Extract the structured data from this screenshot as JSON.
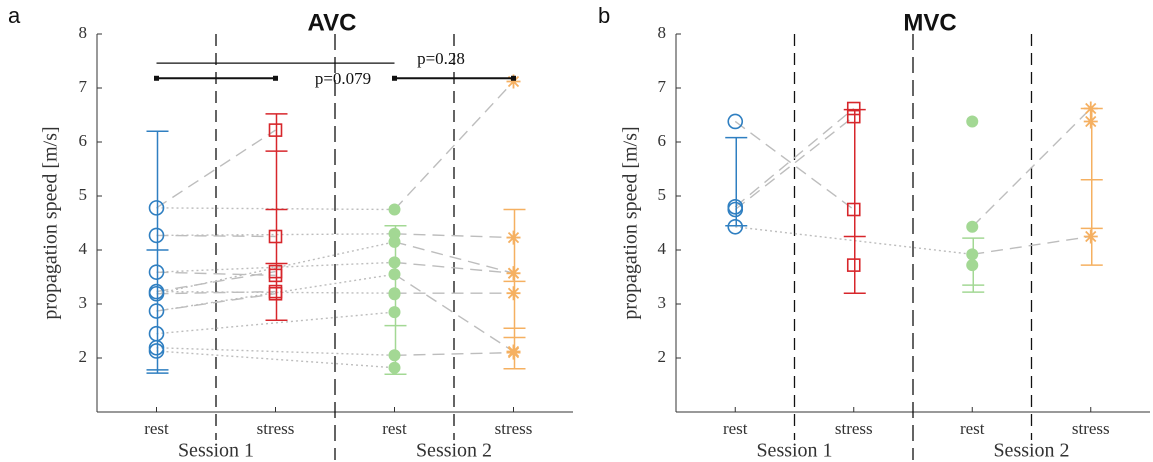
{
  "chart_data": [
    {
      "type": "scatter",
      "panel": "a",
      "title": "AVC",
      "ylabel": "propagation speed [m/s]",
      "categories": [
        "rest",
        "stress",
        "rest",
        "stress"
      ],
      "groups": [
        "Session 1",
        "Session 2"
      ],
      "category_colors": [
        "#2f7fc1",
        "#d7262b",
        "#a3d894",
        "#f5b061"
      ],
      "markers": [
        "circle-open",
        "square-open",
        "circle-filled",
        "asterisk"
      ],
      "ylim": [
        1,
        8
      ],
      "yticks": [
        2,
        3,
        4,
        5,
        6,
        7,
        8
      ],
      "series": [
        {
          "values": [
            4.78,
            6.22,
            4.75,
            7.12
          ]
        },
        {
          "values": [
            4.27,
            4.25,
            4.3,
            4.23
          ]
        },
        {
          "values": [
            3.59,
            3.53,
            3.77,
            3.57
          ]
        },
        {
          "values": [
            3.23,
            3.6,
            3.2,
            3.2
          ]
        },
        {
          "values": [
            3.19,
            3.23,
            4.15,
            3.57
          ]
        },
        {
          "values": [
            2.87,
            3.19,
            3.55,
            2.12
          ]
        },
        {
          "values": [
            2.45,
            null,
            2.85,
            null
          ]
        },
        {
          "values": [
            2.19,
            null,
            2.05,
            2.1
          ]
        },
        {
          "values": [
            2.13,
            null,
            1.82,
            null
          ]
        },
        {
          "values": [
            null,
            null,
            3.18,
            null
          ]
        }
      ],
      "error_ticks": [
        [
          1.72,
          1.78,
          4.0,
          6.2
        ],
        [
          2.7,
          3.75,
          4.75,
          5.83,
          6.52
        ],
        [
          1.7,
          2.6,
          4.45
        ],
        [
          1.8,
          2.38,
          2.55,
          3.42,
          4.75
        ]
      ],
      "bracket_y": [
        7.46,
        7.18,
        7.18
      ],
      "annotations": [
        "p=0.079",
        "p=0.28"
      ]
    },
    {
      "type": "scatter",
      "panel": "b",
      "title": "MVC",
      "ylabel": "propagation speed [m/s]",
      "categories": [
        "rest",
        "stress",
        "rest",
        "stress"
      ],
      "groups": [
        "Session 1",
        "Session 2"
      ],
      "category_colors": [
        "#2f7fc1",
        "#d7262b",
        "#a3d894",
        "#f5b061"
      ],
      "markers": [
        "circle-open",
        "square-open",
        "circle-filled",
        "asterisk"
      ],
      "ylim": [
        1,
        8
      ],
      "yticks": [
        2,
        3,
        4,
        5,
        6,
        7,
        8
      ],
      "series": [
        {
          "values": [
            6.38,
            4.75,
            null,
            null
          ]
        },
        {
          "values": [
            4.8,
            6.62,
            null,
            null
          ]
        },
        {
          "values": [
            4.43,
            null,
            3.92,
            4.25
          ]
        },
        {
          "values": [
            4.75,
            6.47,
            null,
            null
          ]
        },
        {
          "values": [
            null,
            3.72,
            null,
            null
          ]
        },
        {
          "values": [
            null,
            null,
            6.38,
            null
          ]
        },
        {
          "values": [
            null,
            null,
            4.43,
            6.62
          ]
        },
        {
          "values": [
            null,
            null,
            3.72,
            null
          ]
        },
        {
          "values": [
            null,
            null,
            null,
            6.38
          ]
        }
      ],
      "error_ticks": [
        [
          4.45,
          6.08
        ],
        [
          3.2,
          4.25,
          6.6
        ],
        [
          3.22,
          3.35,
          4.22
        ],
        [
          3.72,
          4.4,
          5.3,
          6.62
        ]
      ]
    }
  ]
}
